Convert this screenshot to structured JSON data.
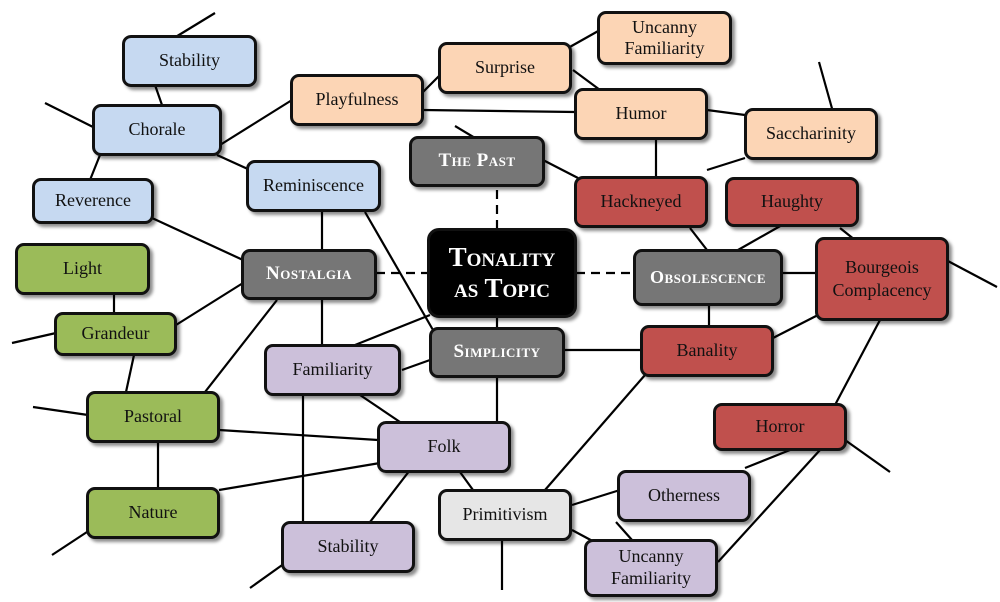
{
  "center": {
    "line1": "Tonality",
    "line2": "as Topic"
  },
  "hubs": {
    "the_past": "The Past",
    "nostalgia": "Nostalgia",
    "obsolescence": "Obsolescence",
    "simplicity": "Simplicity"
  },
  "nodes": {
    "stability_top": "Stability",
    "chorale": "Chorale",
    "reverence": "Reverence",
    "reminiscence": "Reminiscence",
    "playfulness": "Playfulness",
    "surprise": "Surprise",
    "uncanny_top_1": "Uncanny",
    "uncanny_top_2": "Familiarity",
    "humor": "Humor",
    "saccharinity": "Saccharinity",
    "hackneyed": "Hackneyed",
    "haughty": "Haughty",
    "bourgeois_1": "Bourgeois",
    "bourgeois_2": "Complacency",
    "banality": "Banality",
    "horror": "Horror",
    "light": "Light",
    "grandeur": "Grandeur",
    "pastoral": "Pastoral",
    "nature": "Nature",
    "familiarity": "Familiarity",
    "folk": "Folk",
    "stability_bottom": "Stability",
    "primitivism": "Primitivism",
    "otherness": "Otherness",
    "uncanny_bottom_1": "Uncanny",
    "uncanny_bottom_2": "Familiarity"
  },
  "colors": {
    "blue": "#c6d9f1",
    "orange": "#fcd5b5",
    "red": "#c0504d",
    "green": "#9bbb59",
    "purple": "#ccc0da",
    "gray": "#e6e6e6",
    "hub": "#767676",
    "center": "#000000"
  }
}
